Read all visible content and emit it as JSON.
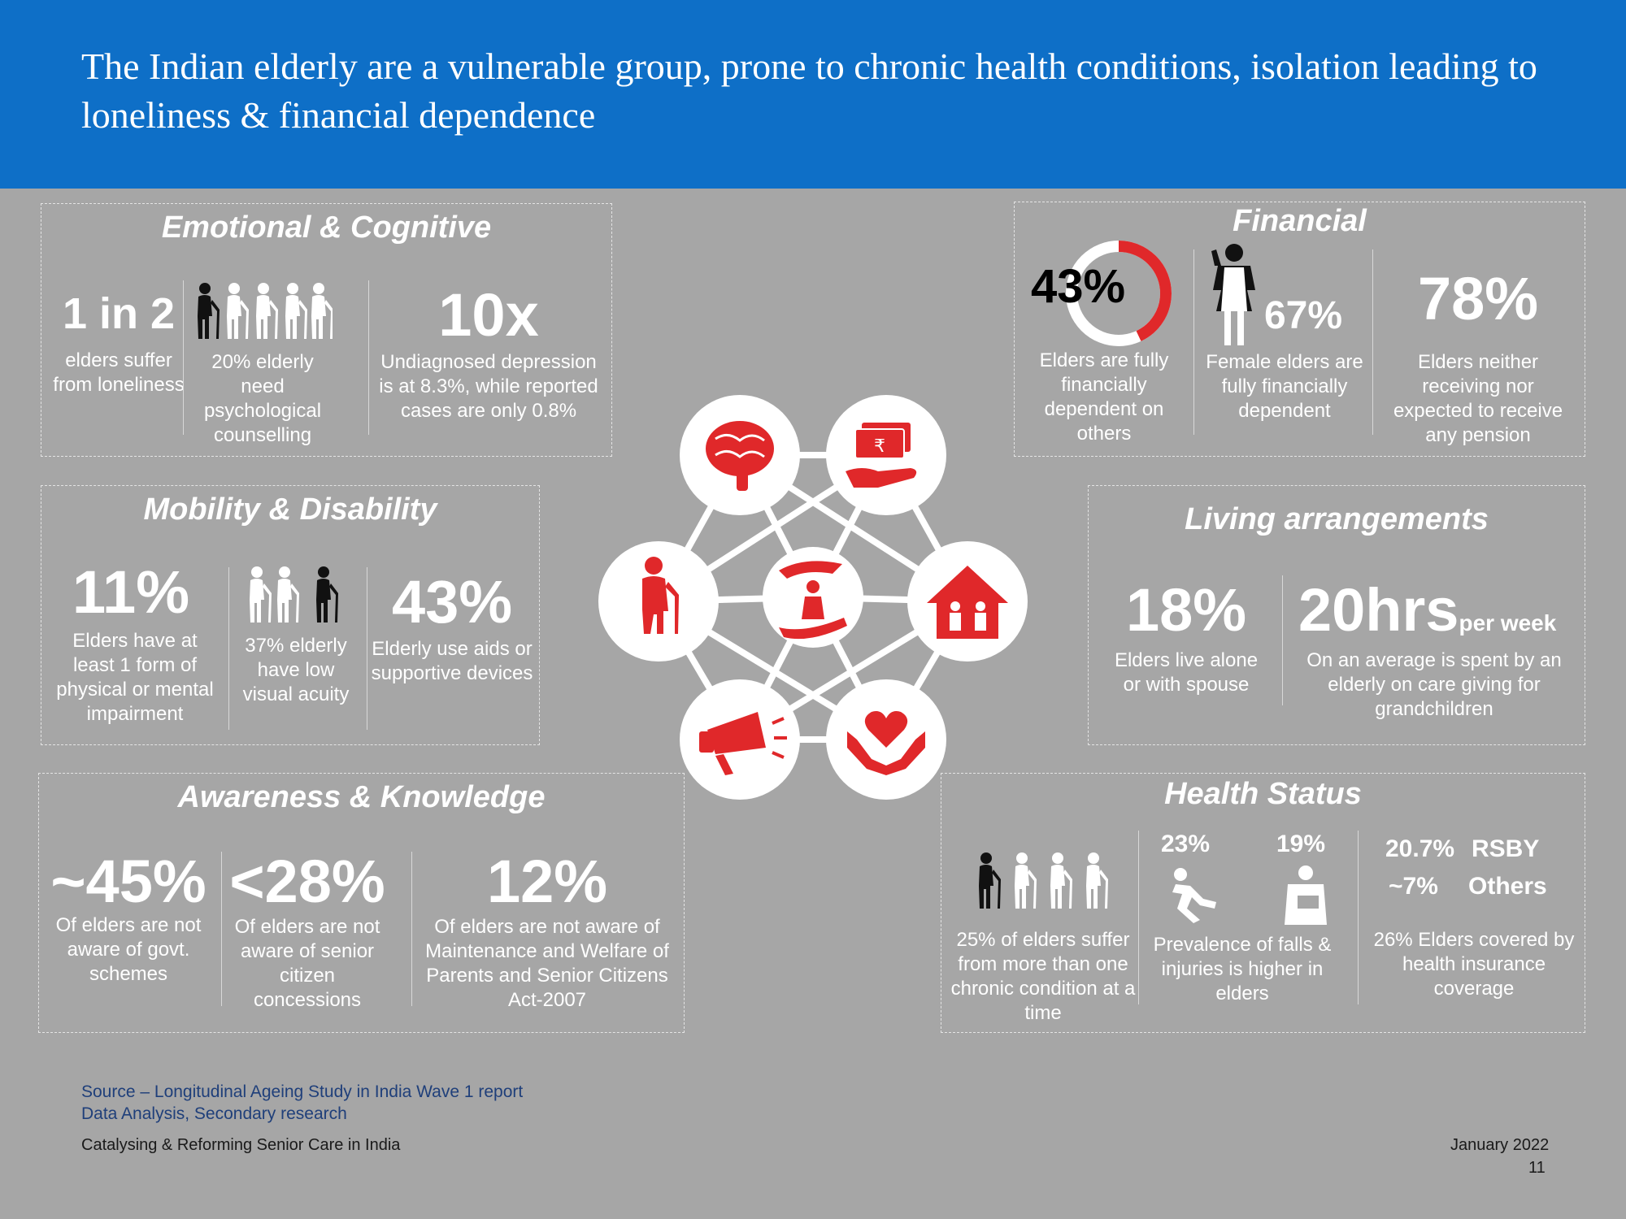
{
  "header": {
    "title": "The Indian elderly are a vulnerable group, prone to chronic health conditions, isolation leading to loneliness & financial dependence"
  },
  "emotional": {
    "title": "Emotional & Cognitive",
    "stat1": "1 in 2",
    "cap1": "elders suffer from loneliness",
    "cap2": "20% elderly need psychological counselling",
    "stat3": "10x",
    "cap3": "Undiagnosed depression is at 8.3%, while reported cases are only 0.8%"
  },
  "financial": {
    "title": "Financial",
    "stat1": "43%",
    "stat1_fraction": 0.43,
    "cap1": "Elders are fully financially dependent on others",
    "stat2": "67%",
    "cap2": "Female elders are fully financially dependent",
    "stat3": "78%",
    "cap3": "Elders neither receiving nor expected to receive any pension"
  },
  "mobility": {
    "title": "Mobility & Disability",
    "stat1": "11%",
    "cap1": "Elders have at least 1 form of physical or mental impairment",
    "cap2": "37% elderly have low visual acuity",
    "stat3": "43%",
    "cap3": "Elderly use aids or supportive devices"
  },
  "living": {
    "title": "Living arrangements",
    "stat1": "18%",
    "cap1": "Elders live alone or with spouse",
    "stat2": "20hrs",
    "stat2_suffix": "per week",
    "cap2": "On an average is spent by an elderly on care giving for grandchildren"
  },
  "awareness": {
    "title": "Awareness & Knowledge",
    "stat1": "~45%",
    "cap1": "Of elders are not aware of govt. schemes",
    "stat2": "<28%",
    "cap2": "Of elders are not aware of senior citizen concessions",
    "stat3": "12%",
    "cap3": "Of elders are not aware of Maintenance and Welfare of Parents and Senior Citizens Act-2007"
  },
  "health": {
    "title": "Health Status",
    "cap1": "25% of elders suffer from more than one chronic condition at a time",
    "stat_falls": "23%",
    "stat_injuries": "19%",
    "cap2": "Prevalence of falls & injuries is higher in elders",
    "rsby_value": "20.7%",
    "rsby_label": "RSBY",
    "others_value": "~7%",
    "others_label": "Others",
    "cap3": "26% Elders covered by health insurance coverage"
  },
  "hub": {
    "icons": [
      "brain-icon",
      "rupee-hand-icon",
      "elderly-cane-icon",
      "family-care-icon",
      "house-icon",
      "megaphone-icon",
      "heart-hands-icon"
    ],
    "accent": "#e0282a"
  },
  "footer": {
    "source_line1": "Source – Longitudinal Ageing Study in India Wave 1 report",
    "source_line2": "Data Analysis, Secondary research",
    "left": "Catalysing & Reforming Senior Care in India",
    "date": "January 2022",
    "page": "11"
  }
}
